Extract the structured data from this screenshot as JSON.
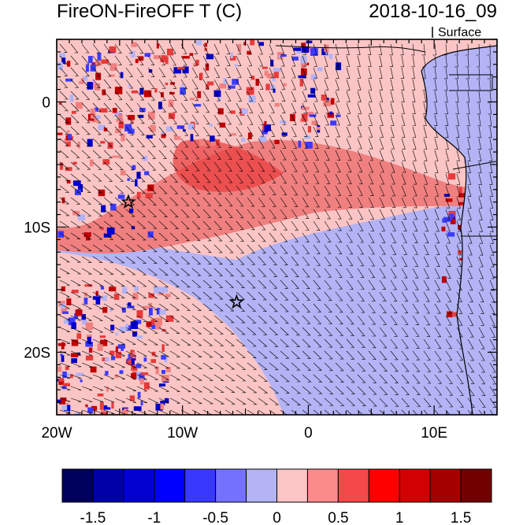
{
  "title_left": "FireON-FireOFF T (C)",
  "title_right": "2018-10-16_09",
  "level_label": "Surface",
  "map": {
    "lon_range": [
      -20,
      15
    ],
    "lat_range": [
      -25,
      5
    ],
    "lon_ticks": [
      {
        "value": -20,
        "label": "20W"
      },
      {
        "value": -10,
        "label": "10W"
      },
      {
        "value": 0,
        "label": "0"
      },
      {
        "value": 10,
        "label": "10E"
      }
    ],
    "lat_ticks": [
      {
        "value": 0,
        "label": "0"
      },
      {
        "value": -10,
        "label": "10S"
      },
      {
        "value": -20,
        "label": "20S"
      }
    ],
    "stars": [
      {
        "lon": -14.3,
        "lat": -8.0
      },
      {
        "lon": -5.7,
        "lat": -16.0
      }
    ],
    "background_color": "#fcc5c5",
    "land_color": "#b3b3f5"
  },
  "colorbar": {
    "colors": [
      "#00005c",
      "#0000a8",
      "#0000d0",
      "#0000ff",
      "#3838ff",
      "#7272ff",
      "#b3b3f5",
      "#fcc5c5",
      "#fb8a8a",
      "#f54848",
      "#ff0000",
      "#d20000",
      "#a50000",
      "#720000"
    ],
    "labels": [
      "-1.5",
      "-1",
      "-0.5",
      "0",
      "0.5",
      "1",
      "1.5"
    ]
  }
}
